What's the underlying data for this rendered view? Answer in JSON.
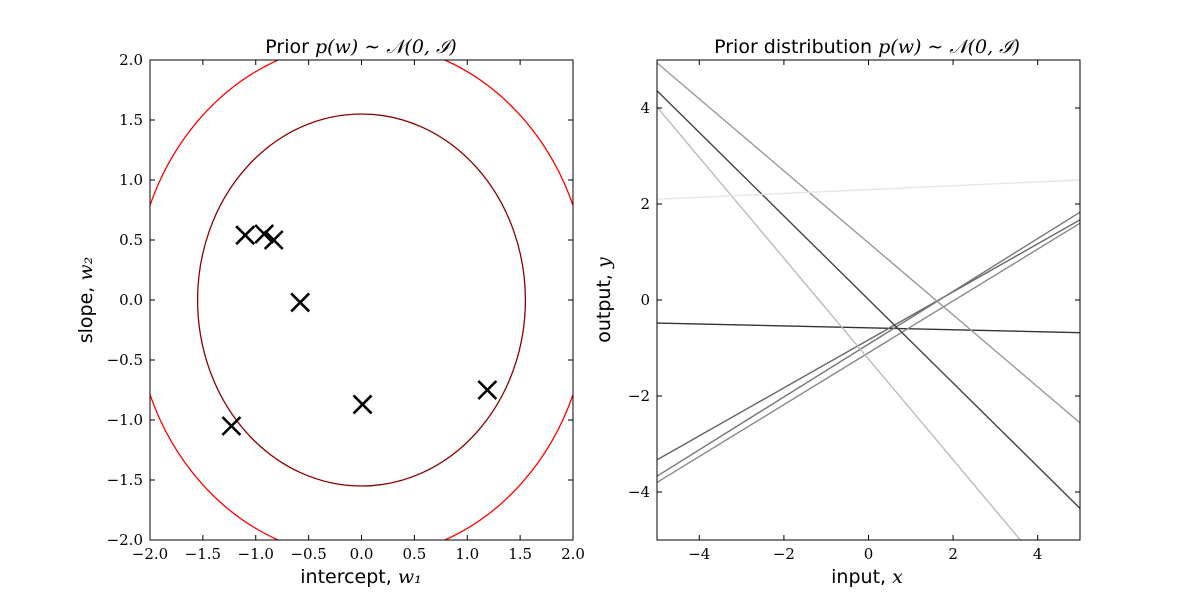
{
  "chart_data": [
    {
      "type": "scatter",
      "title": {
        "prefix": "Prior",
        "math": "p(w) ∼ 𝒩(0, ℐ)"
      },
      "xlabel": {
        "text": "intercept,",
        "math": "w₁"
      },
      "ylabel": {
        "text": "slope,",
        "math": "w₂"
      },
      "xlim": [
        -2.0,
        2.0
      ],
      "ylim": [
        -2.0,
        2.0
      ],
      "xticks": [
        -2.0,
        -1.5,
        -1.0,
        -0.5,
        0.0,
        0.5,
        1.0,
        1.5,
        2.0
      ],
      "yticks": [
        -2.0,
        -1.5,
        -1.0,
        -0.5,
        0.0,
        0.5,
        1.0,
        1.5,
        2.0
      ],
      "xtick_labels": [
        "−2.0",
        "−1.5",
        "−1.0",
        "−0.5",
        "0.0",
        "0.5",
        "1.0",
        "1.5",
        "2.0"
      ],
      "ytick_labels": [
        "−2.0",
        "−1.5",
        "−1.0",
        "−0.5",
        "0.0",
        "0.5",
        "1.0",
        "1.5",
        "2.0"
      ],
      "points": [
        {
          "x": -1.1,
          "y": 0.54
        },
        {
          "x": -0.92,
          "y": 0.55
        },
        {
          "x": -0.83,
          "y": 0.5
        },
        {
          "x": -0.58,
          "y": -0.02
        },
        {
          "x": 0.01,
          "y": -0.87
        },
        {
          "x": 1.19,
          "y": -0.75
        },
        {
          "x": -1.23,
          "y": -1.05
        }
      ],
      "contours": [
        {
          "radius": 1.55,
          "color": "#8b0000"
        },
        {
          "radius": 2.15,
          "color": "#ff0000"
        }
      ],
      "marker_color": "#000000"
    },
    {
      "type": "line",
      "title": {
        "prefix": "Prior distribution",
        "math": "p(w) ∼ 𝒩(0, ℐ)"
      },
      "xlabel": {
        "text": "input,",
        "math": "x"
      },
      "ylabel": {
        "text": "output,",
        "math": "y"
      },
      "xlim": [
        -5.0,
        5.0
      ],
      "ylim": [
        -5.0,
        5.0
      ],
      "xticks": [
        -4,
        -2,
        0,
        2,
        4
      ],
      "yticks": [
        -4,
        -2,
        0,
        2,
        4
      ],
      "xtick_labels": [
        "−4",
        "−2",
        "0",
        "2",
        "4"
      ],
      "ytick_labels": [
        "−4",
        "−2",
        "0",
        "2",
        "4"
      ],
      "series": [
        {
          "intercept": -0.58,
          "slope": -0.02,
          "color": "#333333"
        },
        {
          "intercept": -0.83,
          "slope": 0.5,
          "color": "#666666"
        },
        {
          "intercept": -0.92,
          "slope": 0.55,
          "color": "#777777"
        },
        {
          "intercept": -1.1,
          "slope": 0.54,
          "color": "#888888"
        },
        {
          "intercept": 1.19,
          "slope": -0.75,
          "color": "#999999"
        },
        {
          "intercept": 0.01,
          "slope": -0.87,
          "color": "#444444"
        },
        {
          "intercept": -1.23,
          "slope": -1.05,
          "color": "#bbbbbb"
        },
        {
          "intercept": 2.3,
          "slope": 0.04,
          "color": "#e6e6e6"
        }
      ]
    }
  ]
}
